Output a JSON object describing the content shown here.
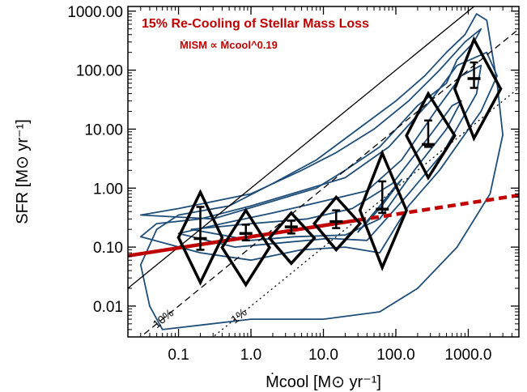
{
  "chart_data": {
    "type": "line",
    "title": "15% Re-Cooling of Stellar Mass Loss",
    "subtitle": "ṀISM ∝ Ṁcool^0.19",
    "xlabel": "Ṁcool [M⊙ yr⁻¹]",
    "ylabel": "SFR [M⊙ yr⁻¹]",
    "xscale": "log",
    "yscale": "log",
    "xlim": [
      0.02,
      5000
    ],
    "ylim": [
      0.003,
      1200
    ],
    "xticks": [
      {
        "value": 0.1,
        "label": "0.1"
      },
      {
        "value": 1,
        "label": "1.0"
      },
      {
        "value": 10,
        "label": "10.0"
      },
      {
        "value": 100,
        "label": "100.0"
      },
      {
        "value": 1000,
        "label": "1000.0"
      }
    ],
    "yticks": [
      {
        "value": 0.01,
        "label": "0.01"
      },
      {
        "value": 0.1,
        "label": "0.10"
      },
      {
        "value": 1,
        "label": "1.00"
      },
      {
        "value": 10,
        "label": "10.00"
      },
      {
        "value": 100,
        "label": "100.00"
      },
      {
        "value": 1000,
        "label": "1000.00"
      }
    ],
    "reference_lines": [
      {
        "label": "",
        "fraction": 1.0,
        "style": "solid"
      },
      {
        "label": "10%",
        "fraction": 0.1,
        "style": "dashed"
      },
      {
        "label": "1%",
        "fraction": 0.01,
        "style": "dotted"
      }
    ],
    "fit": {
      "normalization": 0.15,
      "slope": 0.19,
      "x_solid": [
        0.02,
        30
      ],
      "x_dashed": [
        30,
        5000
      ],
      "color": "#c00000"
    },
    "bins": [
      {
        "x": 0.2,
        "median": 0.14,
        "low": 0.09,
        "high": 0.48,
        "diamond_low": 0.025,
        "diamond_high": 0.85,
        "diamond_xmin": 0.1,
        "diamond_xmax": 0.4
      },
      {
        "x": 0.85,
        "median": 0.17,
        "low": 0.13,
        "high": 0.24,
        "diamond_low": 0.023,
        "diamond_high": 0.42,
        "diamond_xmin": 0.4,
        "diamond_xmax": 1.8
      },
      {
        "x": 3.6,
        "median": 0.22,
        "low": 0.17,
        "high": 0.28,
        "diamond_low": 0.053,
        "diamond_high": 0.38,
        "diamond_xmin": 1.8,
        "diamond_xmax": 7.5
      },
      {
        "x": 15,
        "median": 0.27,
        "low": 0.21,
        "high": 0.42,
        "diamond_low": 0.09,
        "diamond_high": 0.7,
        "diamond_xmin": 7.5,
        "diamond_xmax": 32
      },
      {
        "x": 65,
        "median": 0.44,
        "low": 0.38,
        "high": 1.3,
        "diamond_low": 0.045,
        "diamond_high": 3.9,
        "diamond_xmin": 32,
        "diamond_xmax": 140
      },
      {
        "x": 280,
        "median": 5.5,
        "low": 5,
        "high": 14,
        "diamond_low": 1.5,
        "diamond_high": 40,
        "diamond_xmin": 140,
        "diamond_xmax": 650
      },
      {
        "x": 1200,
        "median": 72,
        "low": 50,
        "high": 135,
        "diamond_low": 7,
        "diamond_high": 330,
        "diamond_xmin": 650,
        "diamond_xmax": 2800
      }
    ],
    "contours": [
      [
        [
          0.03,
          0.15
        ],
        [
          0.2,
          0.08
        ],
        [
          1,
          0.06
        ],
        [
          5,
          0.09
        ],
        [
          20,
          0.1
        ],
        [
          60,
          0.08
        ],
        [
          150,
          0.5
        ],
        [
          400,
          2
        ],
        [
          1500,
          20
        ],
        [
          2500,
          80
        ],
        [
          1800,
          200
        ],
        [
          700,
          120
        ],
        [
          300,
          30
        ],
        [
          80,
          5
        ],
        [
          20,
          1.5
        ],
        [
          5,
          0.9
        ],
        [
          1,
          0.5
        ],
        [
          0.2,
          0.3
        ],
        [
          0.05,
          0.25
        ]
      ],
      [
        [
          0.1,
          0.17
        ],
        [
          0.6,
          0.1
        ],
        [
          3,
          0.12
        ],
        [
          12,
          0.14
        ],
        [
          40,
          0.13
        ],
        [
          150,
          0.8
        ],
        [
          450,
          4
        ],
        [
          1300,
          40
        ],
        [
          1500,
          120
        ],
        [
          800,
          80
        ],
        [
          350,
          20
        ],
        [
          120,
          3
        ],
        [
          40,
          0.9
        ],
        [
          10,
          0.6
        ],
        [
          2,
          0.38
        ],
        [
          0.4,
          0.25
        ]
      ],
      [
        [
          0.15,
          0.2
        ],
        [
          1,
          0.13
        ],
        [
          4,
          0.15
        ],
        [
          20,
          0.16
        ],
        [
          60,
          0.3
        ],
        [
          180,
          2
        ],
        [
          500,
          10
        ],
        [
          800,
          30
        ],
        [
          600,
          25
        ],
        [
          300,
          8
        ],
        [
          90,
          1.2
        ],
        [
          25,
          0.45
        ],
        [
          6,
          0.3
        ],
        [
          1,
          0.25
        ]
      ],
      [
        [
          30,
          0.18
        ],
        [
          60,
          0.45
        ],
        [
          120,
          1.4
        ],
        [
          100,
          1.1
        ],
        [
          60,
          0.5
        ]
      ],
      [
        [
          0.03,
          0.35
        ],
        [
          0.3,
          0.3
        ],
        [
          2,
          0.6
        ],
        [
          8,
          1.0
        ],
        [
          20,
          2.0
        ],
        [
          60,
          5
        ],
        [
          200,
          25
        ],
        [
          500,
          60
        ],
        [
          700,
          150
        ],
        [
          1200,
          300
        ],
        [
          1500,
          500
        ],
        [
          900,
          300
        ],
        [
          400,
          100
        ],
        [
          150,
          30
        ],
        [
          50,
          10
        ],
        [
          15,
          4
        ],
        [
          5,
          2
        ],
        [
          1,
          0.8
        ],
        [
          0.1,
          0.45
        ]
      ],
      [
        [
          0.06,
          0.004
        ],
        [
          1,
          0.006
        ],
        [
          10,
          0.006
        ],
        [
          60,
          0.008
        ],
        [
          200,
          0.02
        ],
        [
          700,
          0.1
        ],
        [
          2000,
          0.8
        ],
        [
          3000,
          8
        ],
        [
          2500,
          60
        ],
        [
          1800,
          700
        ],
        [
          1300,
          900
        ],
        [
          900,
          400
        ],
        [
          500,
          200
        ],
        [
          250,
          80
        ],
        [
          100,
          30
        ],
        [
          30,
          10
        ],
        [
          8,
          3
        ],
        [
          2,
          1.2
        ],
        [
          0.5,
          0.5
        ],
        [
          0.1,
          0.35
        ],
        [
          0.05,
          0.2
        ],
        [
          0.03,
          0.05
        ],
        [
          0.04,
          0.01
        ]
      ]
    ]
  }
}
